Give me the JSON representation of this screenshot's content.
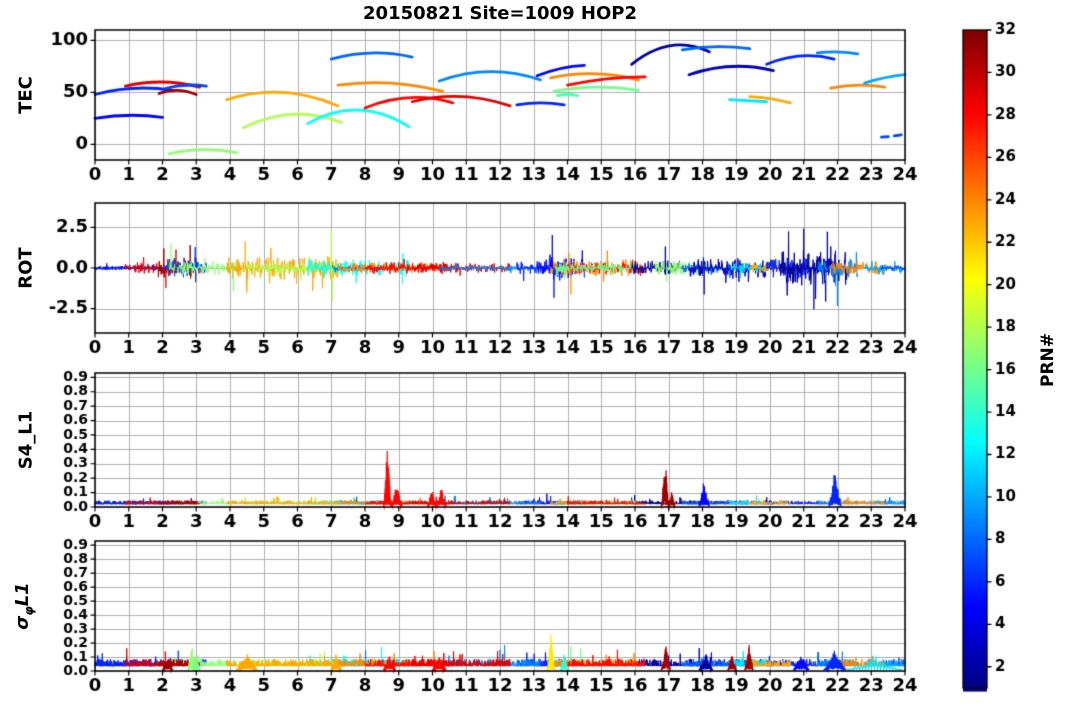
{
  "title": "20150821 Site=1009 HOP2",
  "labels": {
    "tec": "TEC",
    "rot": "ROT",
    "s4": "S4_L1",
    "sigma_prefix": "σ",
    "sigma_sub": "φ",
    "sigma_suffix": "L1",
    "colorbar": "PRN#"
  },
  "colors": {
    "background": "#ffffff",
    "grid": "#b0b0b0",
    "axis": "#000000",
    "colormap": "jet"
  },
  "chart_data": {
    "type": "line",
    "subtype": "multi-panel-time-series",
    "title": "20150821 Site=1009 HOP2",
    "x": {
      "label": "",
      "min": 0,
      "max": 24,
      "ticks": [
        0,
        1,
        2,
        3,
        4,
        5,
        6,
        7,
        8,
        9,
        10,
        11,
        12,
        13,
        14,
        15,
        16,
        17,
        18,
        19,
        20,
        21,
        22,
        23,
        24
      ]
    },
    "colorbar": {
      "label": "PRN#",
      "min": 1,
      "max": 32,
      "ticks": [
        2,
        4,
        6,
        8,
        10,
        12,
        14,
        16,
        18,
        20,
        22,
        24,
        26,
        28,
        30,
        32
      ]
    },
    "panels": [
      {
        "name": "TEC",
        "ylabel": "TEC",
        "ylim": [
          -15,
          110
        ],
        "yticks": [
          0,
          50,
          100
        ],
        "ytick_labels": [
          "0",
          "50",
          "100"
        ],
        "arcs": [
          {
            "prn": 6,
            "t": [
              0.0,
              2.3
            ],
            "y": [
              48,
              54,
              52
            ]
          },
          {
            "prn": 5,
            "t": [
              0.0,
              2.0
            ],
            "y": [
              25,
              28,
              26
            ]
          },
          {
            "prn": 29,
            "t": [
              0.9,
              3.1
            ],
            "y": [
              56,
              60,
              55
            ]
          },
          {
            "prn": 31,
            "t": [
              1.9,
              3.0
            ],
            "y": [
              49,
              52,
              48
            ]
          },
          {
            "prn": 7,
            "t": [
              2.1,
              3.3
            ],
            "y": [
              54,
              57,
              56
            ]
          },
          {
            "prn": 17,
            "t": [
              2.2,
              4.2
            ],
            "y": [
              -9,
              -5,
              -8
            ]
          },
          {
            "prn": 23,
            "t": [
              3.9,
              7.2
            ],
            "y": [
              43,
              50,
              37
            ]
          },
          {
            "prn": 18,
            "t": [
              4.4,
              7.3
            ],
            "y": [
              16,
              29,
              21
            ]
          },
          {
            "prn": 13,
            "t": [
              6.3,
              9.3
            ],
            "y": [
              20,
              33,
              17
            ]
          },
          {
            "prn": 8,
            "t": [
              7.0,
              9.4
            ],
            "y": [
              82,
              88,
              84
            ]
          },
          {
            "prn": 24,
            "t": [
              7.2,
              10.3
            ],
            "y": [
              57,
              59,
              51
            ]
          },
          {
            "prn": 28,
            "t": [
              8.0,
              10.6
            ],
            "y": [
              35,
              45,
              40
            ]
          },
          {
            "prn": 29,
            "t": [
              9.4,
              12.3
            ],
            "y": [
              41,
              46,
              37
            ]
          },
          {
            "prn": 9,
            "t": [
              10.2,
              13.2
            ],
            "y": [
              61,
              70,
              62
            ]
          },
          {
            "prn": 6,
            "t": [
              12.5,
              13.9
            ],
            "y": [
              38,
              40,
              38
            ]
          },
          {
            "prn": 5,
            "t": [
              13.1,
              14.5
            ],
            "y": [
              66,
              73,
              76
            ]
          },
          {
            "prn": 15,
            "t": [
              13.7,
              14.3
            ],
            "y": [
              47,
              48,
              47
            ]
          },
          {
            "prn": 24,
            "t": [
              13.5,
              16.1
            ],
            "y": [
              64,
              68,
              62
            ]
          },
          {
            "prn": 28,
            "t": [
              14.0,
              16.3
            ],
            "y": [
              57,
              63,
              65
            ]
          },
          {
            "prn": 16,
            "t": [
              13.6,
              16.1
            ],
            "y": [
              51,
              55,
              52
            ]
          },
          {
            "prn": 2,
            "t": [
              15.9,
              18.2
            ],
            "y": [
              77,
              95,
              89
            ]
          },
          {
            "prn": 8,
            "t": [
              17.4,
              19.4
            ],
            "y": [
              91,
              94,
              92
            ]
          },
          {
            "prn": 3,
            "t": [
              17.6,
              20.1
            ],
            "y": [
              67,
              75,
              71
            ]
          },
          {
            "prn": 12,
            "t": [
              18.8,
              19.9
            ],
            "y": [
              43,
              42,
              41
            ]
          },
          {
            "prn": 23,
            "t": [
              19.4,
              20.6
            ],
            "y": [
              46,
              44,
              40
            ]
          },
          {
            "prn": 6,
            "t": [
              19.9,
              21.9
            ],
            "y": [
              77,
              85,
              82
            ]
          },
          {
            "prn": 9,
            "t": [
              21.4,
              22.6
            ],
            "y": [
              88,
              89,
              87
            ]
          },
          {
            "prn": 24,
            "t": [
              21.8,
              23.4
            ],
            "y": [
              54,
              57,
              55
            ]
          },
          {
            "prn": 10,
            "t": [
              22.8,
              24.0
            ],
            "y": [
              59,
              64,
              67
            ]
          },
          {
            "prn": 7,
            "t": [
              23.3,
              24.0
            ],
            "y": [
              7,
              8,
              10
            ],
            "dash": true
          }
        ]
      },
      {
        "name": "ROT",
        "ylabel": "ROT",
        "ylim": [
          -4,
          4
        ],
        "yticks": [
          -2.5,
          0,
          2.5
        ],
        "ytick_labels": [
          "-2.5",
          "0.0",
          "2.5"
        ],
        "segments": [
          {
            "prn": 6,
            "t0": 0.0,
            "t1": 2.3,
            "amp": 0.12
          },
          {
            "prn": 5,
            "t0": 0.0,
            "t1": 2.0,
            "amp": 0.1
          },
          {
            "prn": 29,
            "t0": 0.9,
            "t1": 3.1,
            "amp": 0.3
          },
          {
            "prn": 31,
            "t0": 1.8,
            "t1": 3.0,
            "amp": 0.55,
            "p": 0.03
          },
          {
            "prn": 7,
            "t0": 2.0,
            "t1": 3.3,
            "amp": 0.5,
            "p": 0.03
          },
          {
            "prn": 17,
            "t0": 2.2,
            "t1": 4.2,
            "amp": 0.35
          },
          {
            "prn": 23,
            "t0": 3.9,
            "t1": 7.2,
            "amp": 0.6,
            "p": 0.03
          },
          {
            "prn": 18,
            "t0": 4.4,
            "t1": 7.3,
            "amp": 0.3
          },
          {
            "prn": 13,
            "t0": 6.3,
            "t1": 9.3,
            "amp": 0.45
          },
          {
            "prn": 8,
            "t0": 7.0,
            "t1": 9.4,
            "amp": 0.15
          },
          {
            "prn": 24,
            "t0": 7.2,
            "t1": 10.3,
            "amp": 0.25
          },
          {
            "prn": 28,
            "t0": 8.0,
            "t1": 10.6,
            "amp": 0.3
          },
          {
            "prn": 29,
            "t0": 9.4,
            "t1": 12.3,
            "amp": 0.25
          },
          {
            "prn": 9,
            "t0": 10.2,
            "t1": 13.2,
            "amp": 0.15
          },
          {
            "prn": 6,
            "t0": 12.5,
            "t1": 13.9,
            "amp": 0.35
          },
          {
            "prn": 5,
            "t0": 13.1,
            "t1": 14.5,
            "amp": 0.55,
            "p": 0.04
          },
          {
            "prn": 15,
            "t0": 13.7,
            "t1": 14.3,
            "amp": 0.3
          },
          {
            "prn": 24,
            "t0": 13.5,
            "t1": 16.1,
            "amp": 0.45,
            "p": 0.03
          },
          {
            "prn": 28,
            "t0": 14.0,
            "t1": 16.3,
            "amp": 0.3
          },
          {
            "prn": 16,
            "t0": 13.6,
            "t1": 16.1,
            "amp": 0.25
          },
          {
            "prn": 2,
            "t0": 15.9,
            "t1": 18.2,
            "amp": 0.4
          },
          {
            "prn": 17,
            "t0": 16.6,
            "t1": 18.3,
            "amp": 0.35
          },
          {
            "prn": 8,
            "t0": 17.4,
            "t1": 19.4,
            "amp": 0.25
          },
          {
            "prn": 3,
            "t0": 17.6,
            "t1": 20.1,
            "amp": 0.5,
            "p": 0.03
          },
          {
            "prn": 12,
            "t0": 18.8,
            "t1": 19.9,
            "amp": 0.25
          },
          {
            "prn": 23,
            "t0": 19.4,
            "t1": 20.6,
            "amp": 0.25
          },
          {
            "prn": 6,
            "t0": 19.9,
            "t1": 21.9,
            "amp": 0.5,
            "p": 0.03
          },
          {
            "prn": 2,
            "t0": 20.3,
            "t1": 22.3,
            "amp": 0.9,
            "p": 0.06
          },
          {
            "prn": 9,
            "t0": 21.4,
            "t1": 22.6,
            "amp": 0.5,
            "p": 0.04
          },
          {
            "prn": 24,
            "t0": 21.8,
            "t1": 23.4,
            "amp": 0.35
          },
          {
            "prn": 10,
            "t0": 22.8,
            "t1": 24.0,
            "amp": 0.2
          },
          {
            "prn": 7,
            "t0": 23.3,
            "t1": 24.0,
            "amp": 0.15
          }
        ],
        "spikes": [
          {
            "prn": 17,
            "t": 2.25,
            "v": 1.5
          },
          {
            "prn": 29,
            "t": 2.1,
            "v": -1.2
          },
          {
            "prn": 31,
            "t": 2.4,
            "v": 1.1
          },
          {
            "prn": 17,
            "t": 4.1,
            "v": -1.4
          },
          {
            "prn": 23,
            "t": 4.45,
            "v": 1.6
          },
          {
            "prn": 23,
            "t": 4.5,
            "v": -1.5
          },
          {
            "prn": 18,
            "t": 7.0,
            "v": 2.3
          },
          {
            "prn": 18,
            "t": 7.03,
            "v": -2.0
          },
          {
            "prn": 5,
            "t": 13.55,
            "v": 2.0
          },
          {
            "prn": 5,
            "t": 13.6,
            "v": -1.8
          },
          {
            "prn": 24,
            "t": 14.1,
            "v": -1.6
          },
          {
            "prn": 2,
            "t": 16.9,
            "v": 1.3
          },
          {
            "prn": 3,
            "t": 18.05,
            "v": -1.6
          },
          {
            "prn": 2,
            "t": 21.0,
            "v": 2.4
          },
          {
            "prn": 2,
            "t": 21.3,
            "v": -2.5
          },
          {
            "prn": 2,
            "t": 21.7,
            "v": 2.2
          },
          {
            "prn": 9,
            "t": 22.0,
            "v": -2.3
          }
        ]
      },
      {
        "name": "S4_L1",
        "ylabel": "S4_L1",
        "ylim": [
          0,
          0.93
        ],
        "yticks": [
          0,
          0.1,
          0.2,
          0.3,
          0.4,
          0.5,
          0.6,
          0.7,
          0.8,
          0.9
        ],
        "ytick_labels": [
          "0.0",
          "0.1",
          "0.2",
          "0.3",
          "0.4",
          "0.5",
          "0.6",
          "0.7",
          "0.8",
          "0.9"
        ],
        "baseline": {
          "level": 0.02,
          "noise": 0.025
        },
        "events": [
          {
            "prn": 28,
            "t0": 8.55,
            "t1": 8.78,
            "peak": 0.45
          },
          {
            "prn": 28,
            "t0": 8.78,
            "t1": 9.1,
            "peak": 0.17
          },
          {
            "prn": 28,
            "t0": 9.85,
            "t1": 10.12,
            "peak": 0.12
          },
          {
            "prn": 28,
            "t0": 10.12,
            "t1": 10.4,
            "peak": 0.14
          },
          {
            "prn": 31,
            "t0": 16.78,
            "t1": 17.0,
            "peak": 0.37
          },
          {
            "prn": 31,
            "t0": 17.0,
            "t1": 17.18,
            "peak": 0.12
          },
          {
            "prn": 5,
            "t0": 17.9,
            "t1": 18.2,
            "peak": 0.2
          },
          {
            "prn": 6,
            "t0": 21.75,
            "t1": 22.1,
            "peak": 0.27
          }
        ]
      },
      {
        "name": "sigma_phi_L1",
        "ylabel": "σφL1",
        "ylim": [
          0,
          0.93
        ],
        "yticks": [
          0,
          0.1,
          0.2,
          0.3,
          0.4,
          0.5,
          0.6,
          0.7,
          0.8,
          0.9
        ],
        "ytick_labels": [
          "0.0",
          "0.1",
          "0.2",
          "0.3",
          "0.4",
          "0.5",
          "0.6",
          "0.7",
          "0.8",
          "0.9"
        ],
        "baseline": {
          "level": 0.035,
          "noise": 0.05
        },
        "events": [
          {
            "prn": 31,
            "t0": 2.0,
            "t1": 2.3,
            "peak": 0.1
          },
          {
            "prn": 17,
            "t0": 2.75,
            "t1": 3.0,
            "peak": 0.17
          },
          {
            "prn": 16,
            "t0": 2.9,
            "t1": 3.1,
            "peak": 0.12
          },
          {
            "prn": 23,
            "t0": 4.2,
            "t1": 4.8,
            "peak": 0.13
          },
          {
            "prn": 23,
            "t0": 7.0,
            "t1": 7.3,
            "peak": 0.1
          },
          {
            "prn": 28,
            "t0": 8.55,
            "t1": 8.9,
            "peak": 0.1
          },
          {
            "prn": 28,
            "t0": 10.0,
            "t1": 10.4,
            "peak": 0.09
          },
          {
            "prn": 21,
            "t0": 13.4,
            "t1": 13.62,
            "peak": 0.27
          },
          {
            "prn": 14,
            "t0": 13.8,
            "t1": 14.0,
            "peak": 0.12
          },
          {
            "prn": 31,
            "t0": 16.78,
            "t1": 17.05,
            "peak": 0.22
          },
          {
            "prn": 2,
            "t0": 17.9,
            "t1": 18.3,
            "peak": 0.12
          },
          {
            "prn": 31,
            "t0": 18.75,
            "t1": 19.0,
            "peak": 0.12
          },
          {
            "prn": 31,
            "t0": 19.25,
            "t1": 19.5,
            "peak": 0.2
          },
          {
            "prn": 5,
            "t0": 20.7,
            "t1": 21.15,
            "peak": 0.14
          },
          {
            "prn": 6,
            "t0": 21.6,
            "t1": 22.25,
            "peak": 0.16
          },
          {
            "prn": 12,
            "t0": 22.3,
            "t1": 23.9,
            "peak": 0.09
          }
        ]
      }
    ]
  }
}
